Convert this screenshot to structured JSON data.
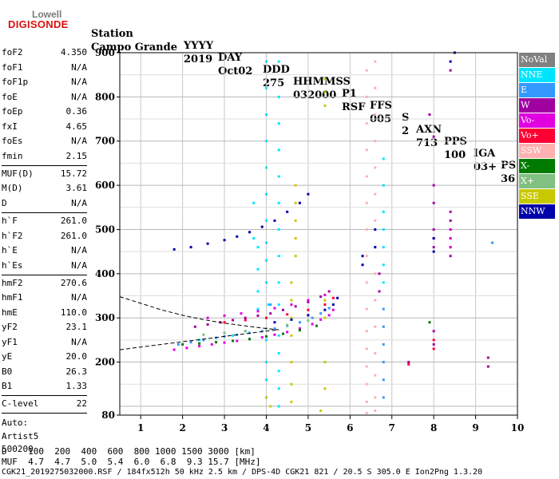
{
  "logo": {
    "line1": "Lowell",
    "line2": "DIGISONDE"
  },
  "header": {
    "row1": [
      "Station",
      "YYYY",
      "DAY",
      "DDD",
      "HHMMSS",
      "P1",
      "FFS",
      "S",
      "AXN",
      "PPS",
      "IGA",
      "PS"
    ],
    "row2": [
      "Campo Grande",
      "2019",
      "Oct02",
      "275",
      "032000",
      "RSF",
      "005",
      "2",
      "713",
      "100",
      "03+",
      "36"
    ]
  },
  "params": [
    {
      "name": "foF2",
      "value": "4.350"
    },
    {
      "name": "foF1",
      "value": "N/A"
    },
    {
      "name": "foF1p",
      "value": "N/A"
    },
    {
      "name": "foE",
      "value": "N/A"
    },
    {
      "name": "foEp",
      "value": "0.36"
    },
    {
      "name": "fxI",
      "value": "4.65"
    },
    {
      "name": "foEs",
      "value": "N/A"
    },
    {
      "name": "fmin",
      "value": "2.15"
    },
    {
      "name": "MUF(D)",
      "value": "15.72"
    },
    {
      "name": "M(D)",
      "value": "3.61"
    },
    {
      "name": "D",
      "value": "N/A"
    },
    {
      "name": "h`F",
      "value": "261.0"
    },
    {
      "name": "h`F2",
      "value": "261.0"
    },
    {
      "name": "h`E",
      "value": "N/A"
    },
    {
      "name": "h`Es",
      "value": "N/A"
    },
    {
      "name": "hmF2",
      "value": "270.6"
    },
    {
      "name": "hmF1",
      "value": "N/A"
    },
    {
      "name": "hmE",
      "value": "110.0"
    },
    {
      "name": "yF2",
      "value": "23.1"
    },
    {
      "name": "yF1",
      "value": "N/A"
    },
    {
      "name": "yE",
      "value": "20.0"
    },
    {
      "name": "B0",
      "value": "26.3"
    },
    {
      "name": "B1",
      "value": "1.33"
    },
    {
      "name": "C-level",
      "value": "22"
    }
  ],
  "autoscale": {
    "line1": "Auto:",
    "line2": "Artist5",
    "line3": "500200"
  },
  "legend": [
    {
      "label": "NoVal",
      "color": "#808080"
    },
    {
      "label": "NNE",
      "color": "#00e5ff"
    },
    {
      "label": "E",
      "color": "#3399ff"
    },
    {
      "label": "W",
      "color": "#a000a0"
    },
    {
      "label": "Vo-",
      "color": "#e000e0"
    },
    {
      "label": "Vo+",
      "color": "#ff0033"
    },
    {
      "label": "SSW",
      "color": "#ffb0b0"
    },
    {
      "label": "X-",
      "color": "#007a00"
    },
    {
      "label": "X+",
      "color": "#80c080"
    },
    {
      "label": "SSE",
      "color": "#c8c800"
    },
    {
      "label": "NNW",
      "color": "#0000aa"
    }
  ],
  "footer": {
    "d_row": "D    100  200  400  600  800 1000 1500 3000 [km]",
    "muf_row": "MUF  4.7  4.7  5.0  5.4  6.0  6.8  9.3 15.7 [MHz]",
    "file_row": "CGK21_2019275032000.RSF / 184fx512h 50 kHz 2.5 km / DPS-4D CGK21 821 / 20.5 S 305.0 E Ion2Png 1.3.20"
  },
  "chart_data": {
    "type": "scatter",
    "xlim": [
      0.5,
      10
    ],
    "ylim": [
      80,
      900
    ],
    "xticks": [
      1,
      2,
      3,
      4,
      5,
      6,
      7,
      8,
      9,
      10
    ],
    "yticks": [
      80,
      200,
      300,
      400,
      500,
      600,
      700,
      800,
      900
    ],
    "xlabel": "",
    "ylabel": "",
    "grid": true,
    "series": [
      {
        "name": "NNE",
        "color": "#00e5ff",
        "points": [
          [
            4.0,
            880
          ],
          [
            4.0,
            820
          ],
          [
            4.0,
            760
          ],
          [
            4.0,
            700
          ],
          [
            4.0,
            640
          ],
          [
            4.0,
            580
          ],
          [
            4.0,
            520
          ],
          [
            4.0,
            470
          ],
          [
            4.0,
            430
          ],
          [
            4.0,
            380
          ],
          [
            4.05,
            330
          ],
          [
            4.0,
            250
          ],
          [
            4.0,
            200
          ],
          [
            4.0,
            160
          ],
          [
            4.0,
            120
          ],
          [
            3.8,
            460
          ],
          [
            3.8,
            410
          ],
          [
            3.8,
            360
          ],
          [
            3.8,
            320
          ],
          [
            3.7,
            560
          ],
          [
            3.7,
            480
          ],
          [
            4.3,
            880
          ],
          [
            4.3,
            800
          ],
          [
            4.3,
            740
          ],
          [
            4.3,
            680
          ],
          [
            4.3,
            620
          ],
          [
            4.3,
            560
          ],
          [
            4.3,
            500
          ],
          [
            4.3,
            440
          ],
          [
            4.3,
            380
          ],
          [
            4.3,
            330
          ],
          [
            4.3,
            260
          ],
          [
            4.3,
            220
          ],
          [
            4.3,
            180
          ],
          [
            4.3,
            140
          ],
          [
            4.3,
            100
          ],
          [
            6.8,
            660
          ],
          [
            6.8,
            600
          ],
          [
            6.8,
            540
          ],
          [
            6.8,
            500
          ],
          [
            6.8,
            460
          ],
          [
            6.8,
            420
          ],
          [
            6.8,
            380
          ],
          [
            3.2,
            260
          ],
          [
            3.5,
            270
          ],
          [
            2.4,
            250
          ]
        ]
      },
      {
        "name": "E",
        "color": "#3399ff",
        "points": [
          [
            1.9,
            240
          ],
          [
            2.2,
            245
          ],
          [
            2.5,
            250
          ],
          [
            2.8,
            255
          ],
          [
            3.0,
            258
          ],
          [
            3.3,
            262
          ],
          [
            3.6,
            266
          ],
          [
            3.9,
            270
          ],
          [
            4.2,
            276
          ],
          [
            4.5,
            282
          ],
          [
            4.8,
            290
          ],
          [
            5.1,
            300
          ],
          [
            5.3,
            310
          ],
          [
            5.5,
            322
          ],
          [
            6.8,
            320
          ],
          [
            6.8,
            280
          ],
          [
            6.8,
            240
          ],
          [
            6.8,
            200
          ],
          [
            6.8,
            160
          ],
          [
            6.8,
            120
          ],
          [
            9.4,
            470
          ],
          [
            4.1,
            330
          ]
        ]
      },
      {
        "name": "W",
        "color": "#a000a0",
        "points": [
          [
            2.3,
            280
          ],
          [
            2.6,
            285
          ],
          [
            2.9,
            290
          ],
          [
            3.2,
            295
          ],
          [
            3.5,
            300
          ],
          [
            3.8,
            305
          ],
          [
            4.1,
            310
          ],
          [
            4.4,
            318
          ],
          [
            4.7,
            326
          ],
          [
            5.0,
            336
          ],
          [
            5.3,
            348
          ],
          [
            5.5,
            360
          ],
          [
            8.0,
            600
          ],
          [
            8.0,
            560
          ],
          [
            8.0,
            500
          ],
          [
            8.0,
            480
          ],
          [
            8.0,
            460
          ],
          [
            8.4,
            540
          ],
          [
            8.4,
            520
          ],
          [
            8.4,
            500
          ],
          [
            8.4,
            480
          ],
          [
            8.4,
            460
          ],
          [
            8.4,
            440
          ],
          [
            8.4,
            860
          ],
          [
            7.9,
            760
          ],
          [
            8.0,
            710
          ],
          [
            7.4,
            200
          ],
          [
            8.0,
            270
          ],
          [
            8.0,
            240
          ],
          [
            9.3,
            210
          ],
          [
            9.3,
            190
          ],
          [
            6.7,
            400
          ],
          [
            6.7,
            360
          ]
        ]
      },
      {
        "name": "Vo-",
        "color": "#e000e0",
        "points": [
          [
            1.8,
            228
          ],
          [
            2.1,
            232
          ],
          [
            2.4,
            236
          ],
          [
            2.7,
            240
          ],
          [
            3.0,
            244
          ],
          [
            3.3,
            248
          ],
          [
            3.6,
            252
          ],
          [
            3.9,
            256
          ],
          [
            4.2,
            262
          ],
          [
            4.5,
            268
          ],
          [
            4.8,
            276
          ],
          [
            5.1,
            286
          ],
          [
            5.3,
            296
          ],
          [
            5.5,
            306
          ],
          [
            5.6,
            318
          ],
          [
            2.6,
            300
          ],
          [
            3.0,
            305
          ],
          [
            3.4,
            310
          ],
          [
            3.8,
            315
          ],
          [
            4.2,
            322
          ],
          [
            4.6,
            330
          ],
          [
            5.0,
            340
          ],
          [
            5.4,
            352
          ],
          [
            8.4,
            500
          ],
          [
            8.4,
            480
          ],
          [
            8.4,
            460
          ]
        ]
      },
      {
        "name": "Vo+",
        "color": "#ff0033",
        "points": [
          [
            3.0,
            290
          ],
          [
            3.5,
            295
          ],
          [
            4.0,
            300
          ],
          [
            4.5,
            308
          ],
          [
            5.0,
            318
          ],
          [
            5.4,
            330
          ],
          [
            5.6,
            345
          ],
          [
            7.4,
            195
          ],
          [
            8.0,
            250
          ],
          [
            8.0,
            230
          ]
        ]
      },
      {
        "name": "SSW",
        "color": "#ffb0b0",
        "points": [
          [
            6.4,
            860
          ],
          [
            6.4,
            800
          ],
          [
            6.4,
            740
          ],
          [
            6.4,
            680
          ],
          [
            6.4,
            620
          ],
          [
            6.4,
            560
          ],
          [
            6.4,
            500
          ],
          [
            6.4,
            440
          ],
          [
            6.4,
            380
          ],
          [
            6.4,
            320
          ],
          [
            6.4,
            270
          ],
          [
            6.4,
            230
          ],
          [
            6.4,
            190
          ],
          [
            6.4,
            150
          ],
          [
            6.4,
            110
          ],
          [
            6.4,
            85
          ],
          [
            6.6,
            880
          ],
          [
            6.6,
            820
          ],
          [
            6.6,
            760
          ],
          [
            6.6,
            700
          ],
          [
            6.6,
            640
          ],
          [
            6.6,
            580
          ],
          [
            6.6,
            520
          ],
          [
            6.6,
            460
          ],
          [
            6.6,
            400
          ],
          [
            6.6,
            340
          ],
          [
            6.6,
            280
          ],
          [
            6.6,
            220
          ],
          [
            6.6,
            170
          ],
          [
            6.6,
            120
          ],
          [
            6.6,
            90
          ]
        ]
      },
      {
        "name": "X-",
        "color": "#007a00",
        "points": [
          [
            2.0,
            240
          ],
          [
            2.4,
            242
          ],
          [
            2.8,
            245
          ],
          [
            3.2,
            248
          ],
          [
            3.6,
            252
          ],
          [
            4.0,
            258
          ],
          [
            4.4,
            264
          ],
          [
            4.8,
            272
          ],
          [
            5.2,
            282
          ],
          [
            7.9,
            290
          ]
        ]
      },
      {
        "name": "X+",
        "color": "#80c080",
        "points": [
          [
            2.5,
            262
          ],
          [
            3.0,
            266
          ],
          [
            3.5,
            270
          ],
          [
            4.0,
            276
          ],
          [
            4.5,
            284
          ],
          [
            5.0,
            294
          ]
        ]
      },
      {
        "name": "SSE",
        "color": "#c8c800",
        "points": [
          [
            5.4,
            840
          ],
          [
            5.4,
            810
          ],
          [
            5.4,
            780
          ],
          [
            4.7,
            600
          ],
          [
            4.7,
            560
          ],
          [
            4.7,
            520
          ],
          [
            4.7,
            480
          ],
          [
            4.7,
            440
          ],
          [
            4.6,
            380
          ],
          [
            4.6,
            340
          ],
          [
            4.6,
            300
          ],
          [
            4.6,
            260
          ],
          [
            4.6,
            200
          ],
          [
            4.6,
            150
          ],
          [
            4.6,
            110
          ],
          [
            5.4,
            340
          ],
          [
            5.4,
            300
          ],
          [
            5.4,
            200
          ],
          [
            5.4,
            140
          ],
          [
            5.3,
            90
          ],
          [
            4.0,
            120
          ],
          [
            4.1,
            100
          ]
        ]
      },
      {
        "name": "NNW",
        "color": "#0000aa",
        "points": [
          [
            1.8,
            455
          ],
          [
            2.2,
            460
          ],
          [
            2.6,
            468
          ],
          [
            3.0,
            476
          ],
          [
            3.3,
            484
          ],
          [
            3.6,
            494
          ],
          [
            3.9,
            506
          ],
          [
            4.2,
            520
          ],
          [
            4.5,
            540
          ],
          [
            4.8,
            560
          ],
          [
            5.0,
            580
          ],
          [
            4.2,
            290
          ],
          [
            4.6,
            296
          ],
          [
            5.0,
            306
          ],
          [
            5.4,
            318
          ],
          [
            5.6,
            330
          ],
          [
            5.7,
            345
          ],
          [
            6.3,
            420
          ],
          [
            6.3,
            440
          ],
          [
            6.6,
            460
          ],
          [
            6.6,
            500
          ],
          [
            8.0,
            480
          ],
          [
            8.0,
            450
          ],
          [
            8.4,
            880
          ],
          [
            8.5,
            900
          ]
        ]
      }
    ],
    "profile_lines": [
      {
        "points": [
          [
            0.5,
            228
          ],
          [
            1.0,
            234
          ],
          [
            1.5,
            240
          ],
          [
            2.0,
            246
          ],
          [
            2.5,
            252
          ],
          [
            3.0,
            258
          ],
          [
            3.5,
            264
          ],
          [
            4.0,
            270
          ],
          [
            4.3,
            273
          ]
        ]
      },
      {
        "points": [
          [
            0.5,
            348
          ],
          [
            1.0,
            333
          ],
          [
            1.5,
            318
          ],
          [
            2.0,
            306
          ],
          [
            2.5,
            296
          ],
          [
            3.0,
            288
          ],
          [
            3.5,
            282
          ],
          [
            4.0,
            276
          ],
          [
            4.3,
            273
          ]
        ]
      }
    ]
  }
}
